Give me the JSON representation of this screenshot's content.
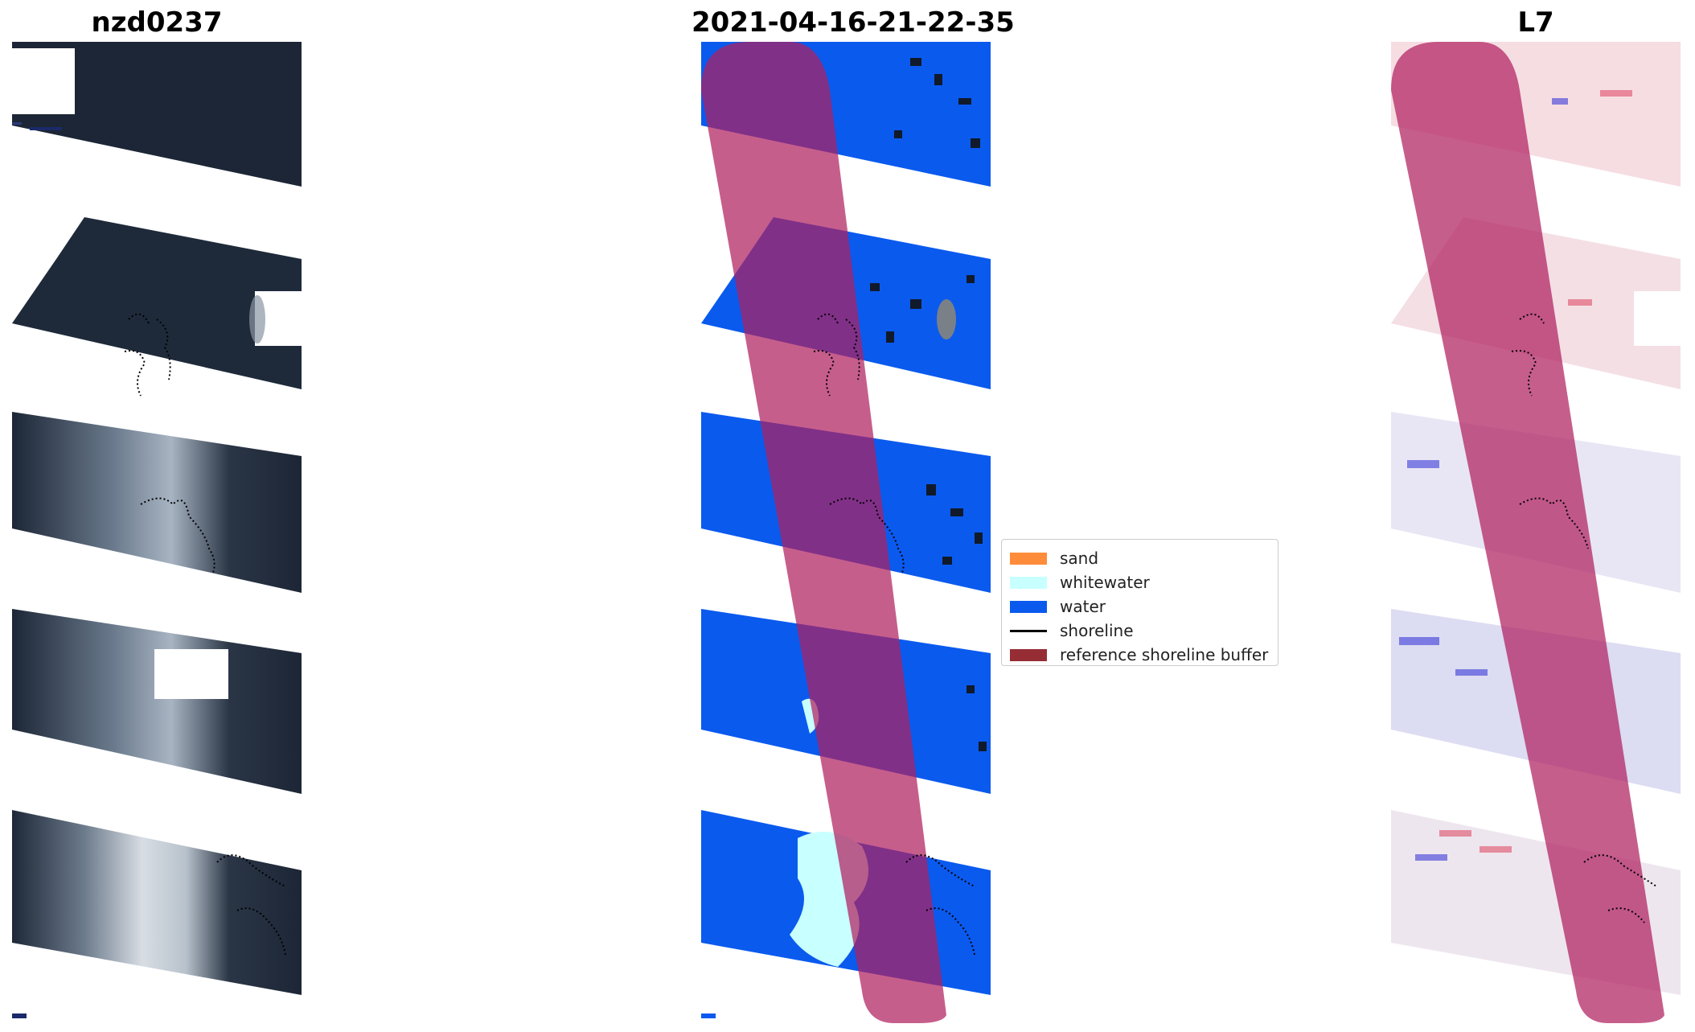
{
  "titles": {
    "left": "nzd0237",
    "center": "2021-04-16-21-22-35",
    "right": "L7"
  },
  "legend": {
    "items": [
      {
        "label": "sand",
        "color": "#ff8c3a",
        "kind": "patch"
      },
      {
        "label": "whitewater",
        "color": "#c8ffff",
        "kind": "patch"
      },
      {
        "label": "water",
        "color": "#0a5aee",
        "kind": "patch"
      },
      {
        "label": "shoreline",
        "color": "#000000",
        "kind": "line"
      },
      {
        "label": "reference shoreline buffer",
        "color": "#962d35",
        "kind": "patch"
      }
    ]
  },
  "colors": {
    "buffer_overlay": "#b02060",
    "water": "#0a5aee",
    "whitewater": "#c8ffff",
    "rgb_dark": "#1c2636",
    "index_red": "#e0506a",
    "index_blue": "#3a3ad8"
  }
}
